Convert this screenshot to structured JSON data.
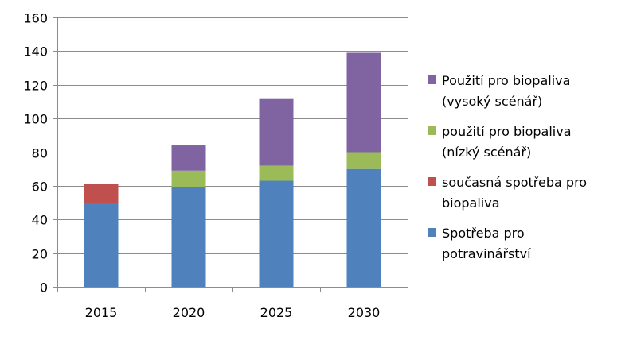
{
  "chart_data": {
    "type": "bar",
    "stacked": true,
    "categories": [
      "2015",
      "2020",
      "2025",
      "2030"
    ],
    "series": [
      {
        "name": "Spotřeba pro potravinářství",
        "legend_lines": [
          "Spotřeba pro",
          "potravinářství"
        ],
        "color": "#4F81BD",
        "values": [
          50,
          59,
          63,
          70
        ]
      },
      {
        "name": "současná spotřeba pro biopaliva",
        "legend_lines": [
          "současná spotřeba pro",
          "biopaliva"
        ],
        "color": "#C0504D",
        "values": [
          11,
          null,
          null,
          null
        ]
      },
      {
        "name": "použití pro biopaliva (nízký scénář)",
        "legend_lines": [
          "použití pro biopaliva",
          "(nízký scénář)"
        ],
        "color": "#9BBB59",
        "values": [
          null,
          10,
          9,
          10
        ]
      },
      {
        "name": "Použití pro biopaliva (vysoký scénář)",
        "legend_lines": [
          "Použití pro biopaliva",
          "(vysoký scénář)"
        ],
        "color": "#8064A2",
        "values": [
          null,
          15,
          40,
          59
        ]
      }
    ],
    "y_ticks": [
      "0",
      "20",
      "40",
      "60",
      "80",
      "100",
      "120",
      "140",
      "160"
    ],
    "ylim": [
      0,
      160
    ],
    "grid": true,
    "legend": "right",
    "title": "",
    "xlabel": "",
    "ylabel": ""
  }
}
